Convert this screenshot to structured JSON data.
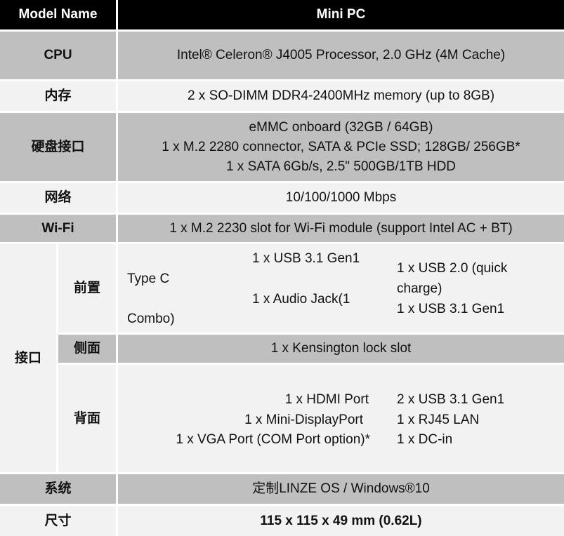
{
  "header": {
    "label": "Model Name",
    "value": "Mini PC"
  },
  "rows": {
    "cpu": {
      "label": "CPU",
      "value": "Intel® Celeron® J4005 Processor, 2.0 GHz (4M Cache)"
    },
    "memory": {
      "label": "内存",
      "value": "2 x SO-DIMM DDR4-2400MHz memory (up to 8GB)"
    },
    "storage": {
      "label": "硬盘接口",
      "lines": [
        "eMMC onboard (32GB / 64GB)",
        "1 x M.2 2280 connector, SATA & PCIe SSD; 128GB/ 256GB*",
        "1 x SATA 6Gb/s, 2.5\" 500GB/1TB HDD"
      ]
    },
    "network": {
      "label": "网络",
      "value": "10/100/1000 Mbps"
    },
    "wifi": {
      "label": "Wi-Fi",
      "value": "1 x M.2 2230 slot for Wi-Fi module (support Intel AC + BT)"
    },
    "ports": {
      "label": "接口",
      "front": {
        "label": "前置",
        "typec_1": "Type C",
        "typec_2": "Combo)",
        "mid": [
          "1 x USB 3.1 Gen1",
          "1 x Audio Jack(1"
        ],
        "right": [
          "1 x USB 2.0 (quick",
          "charge)",
          "1 x USB 3.1 Gen1"
        ]
      },
      "side": {
        "label": "侧面",
        "value": "1 x Kensington lock slot"
      },
      "rear": {
        "label": "背面",
        "left": [
          "1 x HDMI Port",
          "1 x Mini-DisplayPort",
          "1 x VGA Port (COM Port option)*"
        ],
        "right": [
          "2 x USB 3.1 Gen1",
          "1 x RJ45 LAN",
          "1 x DC-in"
        ]
      }
    },
    "os": {
      "label": "系统",
      "value": "定制LINZE OS / Windows®10"
    },
    "size": {
      "label": "尺寸",
      "value": "115 x 115 x 49 mm (0.62L)"
    }
  }
}
